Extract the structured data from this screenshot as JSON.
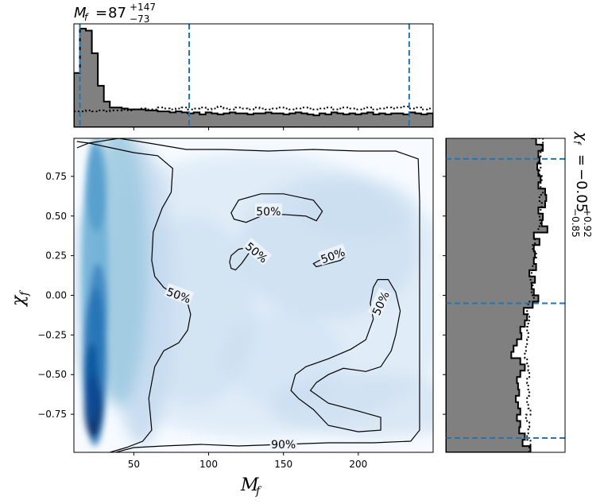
{
  "chart_data": {
    "type": "heatmap",
    "description_of_panels": [
      "top marginal histogram",
      "joint density with contours",
      "right marginal histogram"
    ],
    "x_param": {
      "symbol": "M",
      "sub": "f",
      "median": "87",
      "plus": "+147",
      "minus": "−73",
      "ticks": [
        "50",
        "100",
        "150",
        "200"
      ],
      "tick_values": [
        50,
        100,
        150,
        200
      ],
      "xlim": [
        10,
        250
      ],
      "quantiles": [
        14,
        87,
        234
      ]
    },
    "y_param": {
      "symbol": "χ",
      "sub": "f",
      "median": "−0.05",
      "plus": "+0.92",
      "minus": "−0.85",
      "ticks": [
        "0.75",
        "0.50",
        "0.25",
        "0.00",
        "−0.25",
        "−0.50",
        "−0.75"
      ],
      "tick_values": [
        0.75,
        0.5,
        0.25,
        0.0,
        -0.25,
        -0.5,
        -0.75
      ],
      "ylim": [
        -0.99,
        0.99
      ],
      "quantiles": [
        -0.9,
        -0.05,
        0.86
      ]
    },
    "contour_labels": {
      "inner": "50%",
      "outer": "90%"
    },
    "x_hist": {
      "bin_edges_start": 10,
      "bin_width": 4,
      "posterior": [
        0.55,
        1.0,
        0.98,
        0.75,
        0.42,
        0.26,
        0.2,
        0.2,
        0.19,
        0.18,
        0.18,
        0.18,
        0.17,
        0.17,
        0.16,
        0.16,
        0.15,
        0.16,
        0.15,
        0.14,
        0.15,
        0.13,
        0.15,
        0.14,
        0.13,
        0.14,
        0.15,
        0.14,
        0.14,
        0.13,
        0.14,
        0.14,
        0.15,
        0.14,
        0.14,
        0.13,
        0.14,
        0.15,
        0.14,
        0.13,
        0.12,
        0.14,
        0.13,
        0.15,
        0.14,
        0.13,
        0.14,
        0.13,
        0.14,
        0.15,
        0.13,
        0.14,
        0.13,
        0.14,
        0.14,
        0.13,
        0.15,
        0.14,
        0.13,
        0.14
      ],
      "prior": [
        0.16,
        0.16,
        0.17,
        0.16,
        0.17,
        0.16,
        0.17,
        0.17,
        0.18,
        0.17,
        0.18,
        0.19,
        0.18,
        0.18,
        0.2,
        0.19,
        0.18,
        0.19,
        0.2,
        0.18,
        0.19,
        0.2,
        0.18,
        0.19,
        0.21,
        0.19,
        0.18,
        0.2,
        0.19,
        0.18,
        0.2,
        0.19,
        0.18,
        0.19,
        0.2,
        0.19,
        0.18,
        0.19,
        0.2,
        0.19,
        0.18,
        0.19,
        0.2,
        0.18,
        0.19,
        0.2,
        0.19,
        0.18,
        0.19,
        0.2,
        0.18,
        0.19,
        0.2,
        0.19,
        0.2,
        0.21,
        0.19,
        0.2,
        0.18,
        0.19
      ]
    },
    "y_hist": {
      "bin_edges_start": -0.99,
      "bin_width": 0.0396,
      "posterior": [
        0.75,
        0.68,
        0.7,
        0.65,
        0.66,
        0.63,
        0.66,
        0.64,
        0.62,
        0.65,
        0.64,
        0.63,
        0.66,
        0.7,
        0.66,
        0.58,
        0.6,
        0.63,
        0.67,
        0.66,
        0.7,
        0.72,
        0.69,
        0.77,
        0.82,
        0.78,
        0.76,
        0.79,
        0.74,
        0.8,
        0.78,
        0.79,
        0.78,
        0.83,
        0.78,
        0.9,
        0.85,
        0.86,
        0.82,
        0.88,
        0.89,
        0.88,
        0.82,
        0.84,
        0.82,
        0.81,
        0.83,
        0.82,
        0.86,
        0.8,
        0.76,
        0.72
      ],
      "prior": [
        0.74,
        0.75,
        0.72,
        0.73,
        0.74,
        0.71,
        0.75,
        0.73,
        0.72,
        0.74,
        0.73,
        0.72,
        0.74,
        0.73,
        0.72,
        0.7,
        0.71,
        0.72,
        0.73,
        0.72,
        0.73,
        0.74,
        0.72,
        0.73,
        0.78,
        0.76,
        0.77,
        0.75,
        0.76,
        0.77,
        0.78,
        0.8,
        0.77,
        0.79,
        0.78,
        0.82,
        0.84,
        0.83,
        0.84,
        0.85,
        0.83,
        0.86,
        0.84,
        0.85,
        0.83,
        0.84,
        0.82,
        0.84,
        0.85,
        0.86,
        0.83,
        0.81
      ]
    },
    "density_scale": [
      "#f7fbff",
      "#deebf7",
      "#c6dbef",
      "#9ecae1",
      "#6baed6",
      "#4292c6",
      "#2171b5",
      "#08519c",
      "#08306b"
    ],
    "hist_fill": "#808080",
    "quantile_line_color": "#1f77b4"
  }
}
